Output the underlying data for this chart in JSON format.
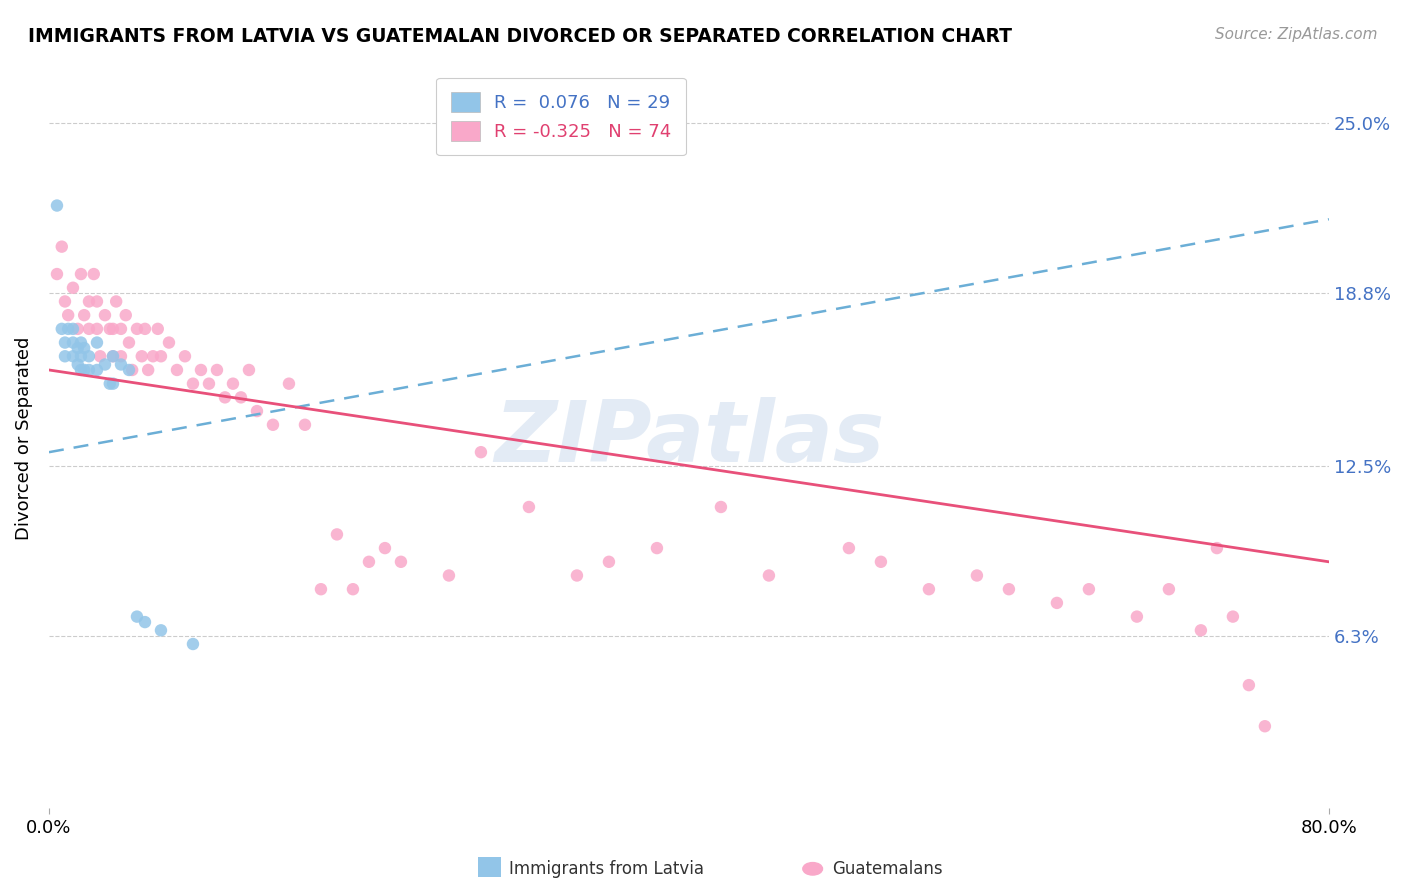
{
  "title": "IMMIGRANTS FROM LATVIA VS GUATEMALAN DIVORCED OR SEPARATED CORRELATION CHART",
  "source": "Source: ZipAtlas.com",
  "ylabel": "Divorced or Separated",
  "ytick_labels": [
    "6.3%",
    "12.5%",
    "18.8%",
    "25.0%"
  ],
  "ytick_values": [
    0.063,
    0.125,
    0.188,
    0.25
  ],
  "xmin": 0.0,
  "xmax": 0.8,
  "ymin": 0.0,
  "ymax": 0.27,
  "legend_blue_R": "0.076",
  "legend_blue_N": "29",
  "legend_pink_R": "-0.325",
  "legend_pink_N": "74",
  "blue_color": "#92C5E8",
  "pink_color": "#F9A8C9",
  "trendline_blue_color": "#6BAED6",
  "trendline_pink_color": "#E8507A",
  "blue_scatter_x": [
    0.005,
    0.008,
    0.01,
    0.01,
    0.012,
    0.015,
    0.015,
    0.015,
    0.018,
    0.018,
    0.02,
    0.02,
    0.02,
    0.022,
    0.022,
    0.025,
    0.025,
    0.03,
    0.03,
    0.035,
    0.038,
    0.04,
    0.04,
    0.045,
    0.05,
    0.055,
    0.06,
    0.07,
    0.09
  ],
  "blue_scatter_y": [
    0.22,
    0.175,
    0.17,
    0.165,
    0.175,
    0.175,
    0.17,
    0.165,
    0.168,
    0.162,
    0.17,
    0.165,
    0.16,
    0.168,
    0.16,
    0.165,
    0.16,
    0.17,
    0.16,
    0.162,
    0.155,
    0.165,
    0.155,
    0.162,
    0.16,
    0.07,
    0.068,
    0.065,
    0.06
  ],
  "pink_scatter_x": [
    0.005,
    0.008,
    0.01,
    0.012,
    0.015,
    0.018,
    0.02,
    0.022,
    0.025,
    0.025,
    0.028,
    0.03,
    0.03,
    0.032,
    0.035,
    0.038,
    0.04,
    0.04,
    0.042,
    0.045,
    0.045,
    0.048,
    0.05,
    0.052,
    0.055,
    0.058,
    0.06,
    0.062,
    0.065,
    0.068,
    0.07,
    0.075,
    0.08,
    0.085,
    0.09,
    0.095,
    0.1,
    0.105,
    0.11,
    0.115,
    0.12,
    0.125,
    0.13,
    0.14,
    0.15,
    0.16,
    0.17,
    0.18,
    0.19,
    0.2,
    0.21,
    0.22,
    0.25,
    0.27,
    0.3,
    0.33,
    0.35,
    0.38,
    0.42,
    0.45,
    0.5,
    0.52,
    0.55,
    0.58,
    0.6,
    0.63,
    0.65,
    0.68,
    0.7,
    0.72,
    0.73,
    0.74,
    0.75,
    0.76
  ],
  "pink_scatter_y": [
    0.195,
    0.205,
    0.185,
    0.18,
    0.19,
    0.175,
    0.195,
    0.18,
    0.185,
    0.175,
    0.195,
    0.185,
    0.175,
    0.165,
    0.18,
    0.175,
    0.175,
    0.165,
    0.185,
    0.175,
    0.165,
    0.18,
    0.17,
    0.16,
    0.175,
    0.165,
    0.175,
    0.16,
    0.165,
    0.175,
    0.165,
    0.17,
    0.16,
    0.165,
    0.155,
    0.16,
    0.155,
    0.16,
    0.15,
    0.155,
    0.15,
    0.16,
    0.145,
    0.14,
    0.155,
    0.14,
    0.08,
    0.1,
    0.08,
    0.09,
    0.095,
    0.09,
    0.085,
    0.13,
    0.11,
    0.085,
    0.09,
    0.095,
    0.11,
    0.085,
    0.095,
    0.09,
    0.08,
    0.085,
    0.08,
    0.075,
    0.08,
    0.07,
    0.08,
    0.065,
    0.095,
    0.07,
    0.045,
    0.03
  ],
  "blue_trend_x": [
    0.0,
    0.8
  ],
  "blue_trend_y": [
    0.13,
    0.215
  ],
  "pink_trend_x": [
    0.0,
    0.8
  ],
  "pink_trend_y": [
    0.16,
    0.09
  ]
}
